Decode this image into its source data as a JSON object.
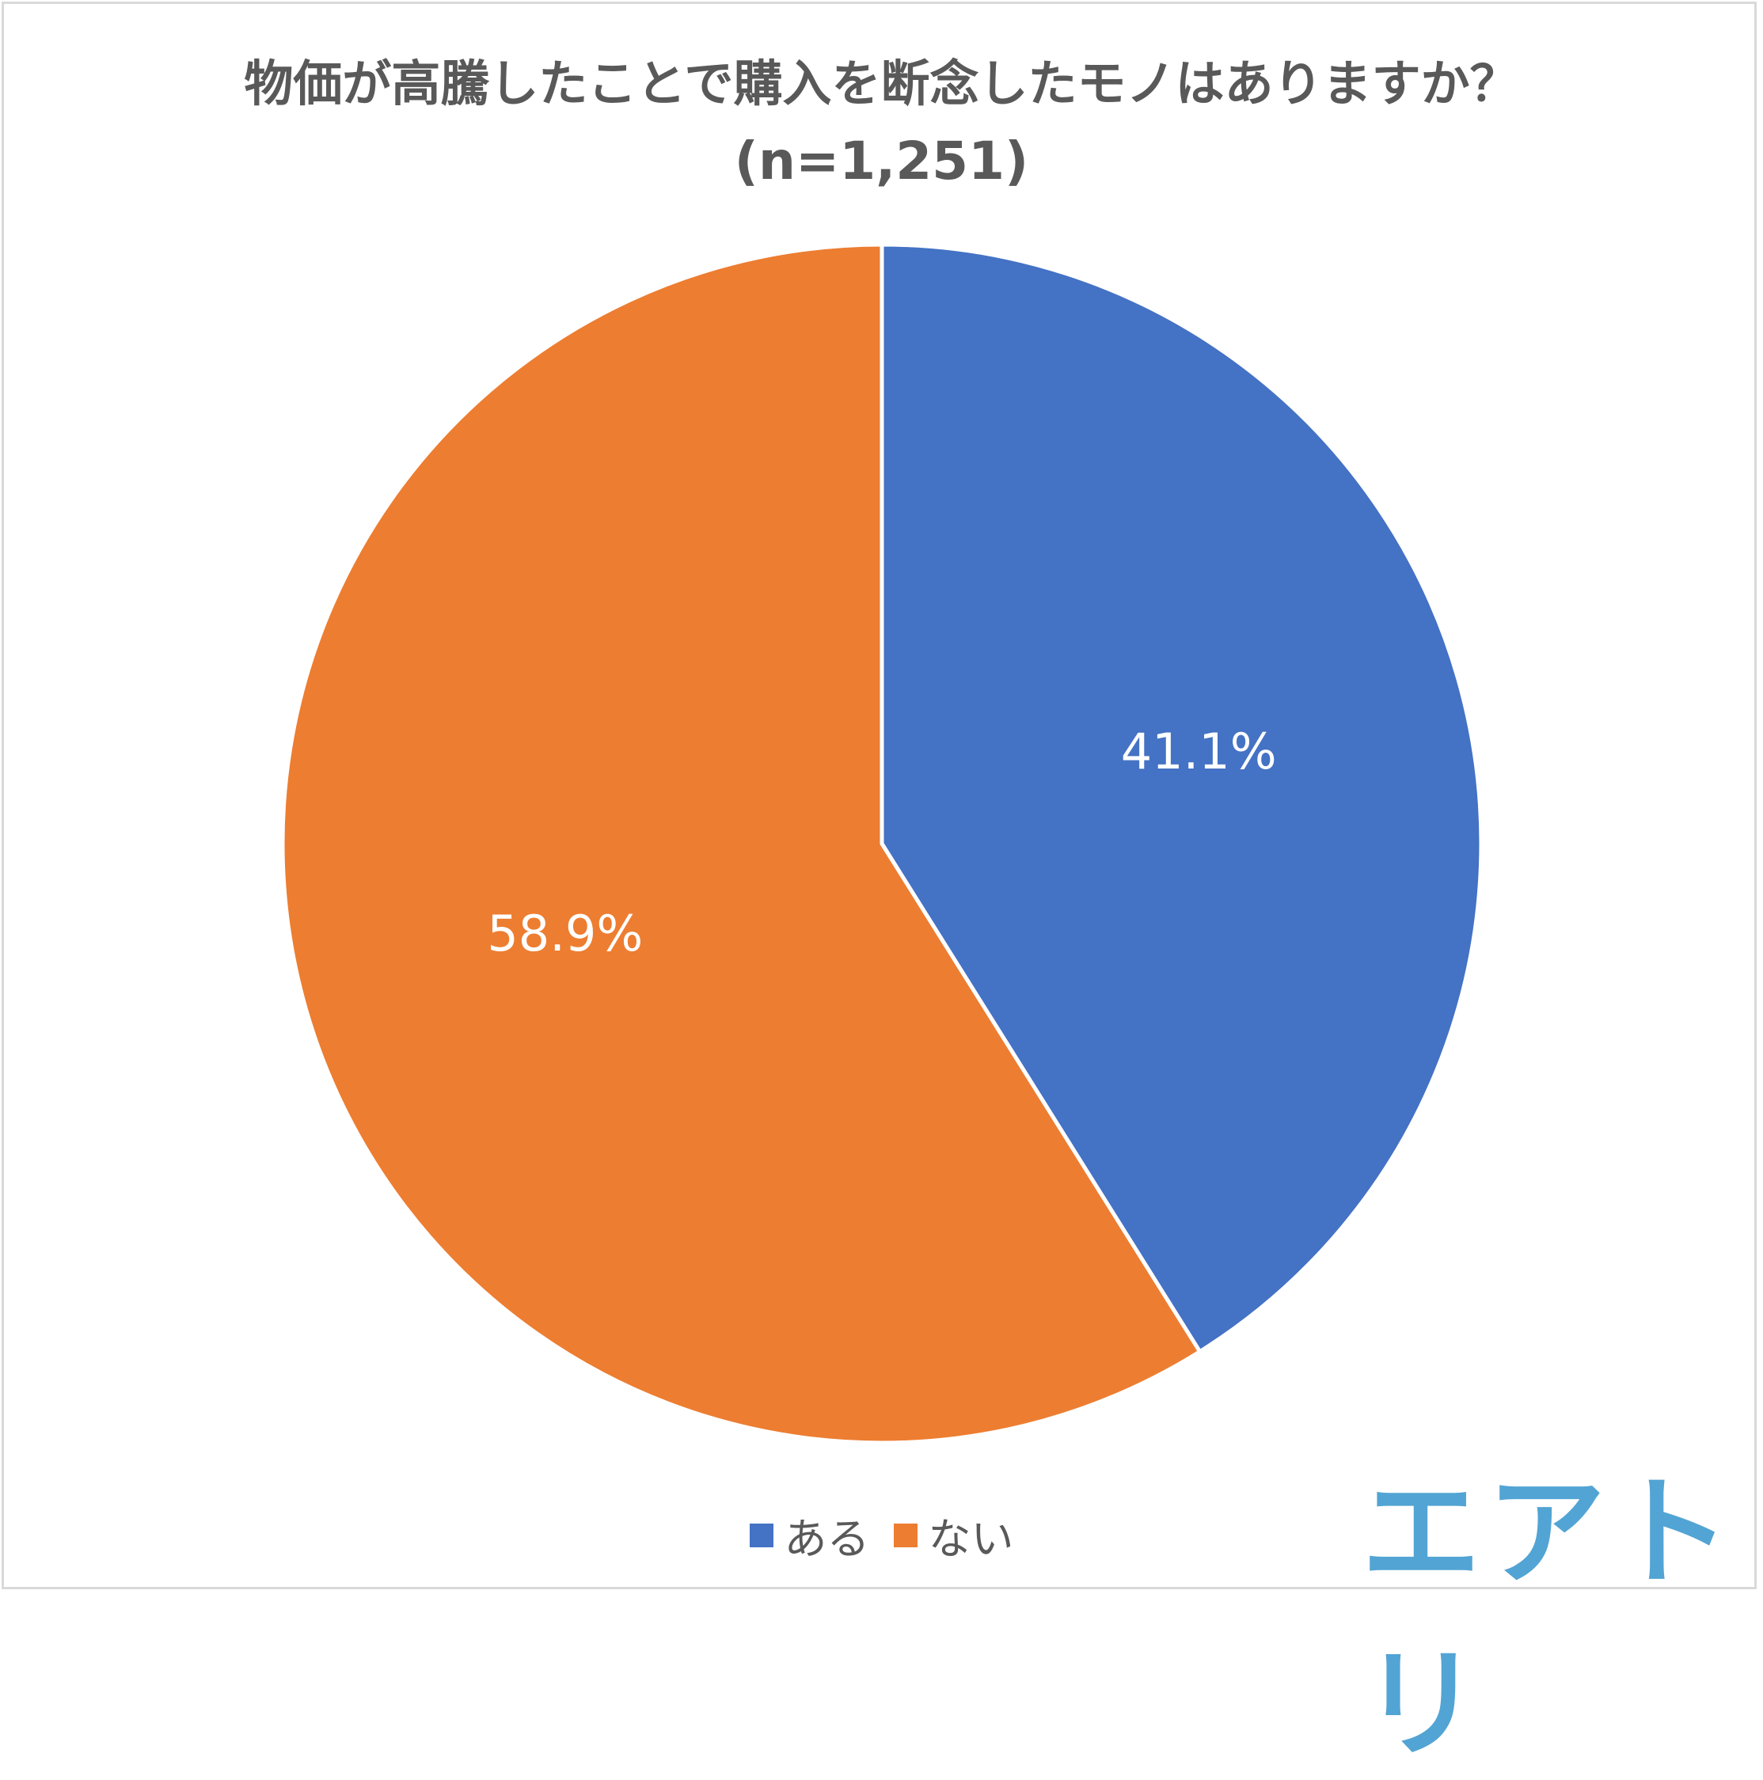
{
  "chart_data": {
    "type": "pie",
    "title": "物価が高騰したことで購入を断念したモノはありますか？",
    "subtitle": "(n=1,251)",
    "categories": [
      "ある",
      "ない"
    ],
    "values": [
      41.1,
      58.9
    ],
    "labels": [
      "41.1%",
      "58.9%"
    ],
    "colors": [
      "#4472C4",
      "#ED7D31"
    ],
    "legend_position": "bottom",
    "start_angle": "12 o'clock, clockwise"
  },
  "logo": {
    "text": "エアトリ",
    "color": "#52A4D4"
  },
  "text_color": "#595959"
}
